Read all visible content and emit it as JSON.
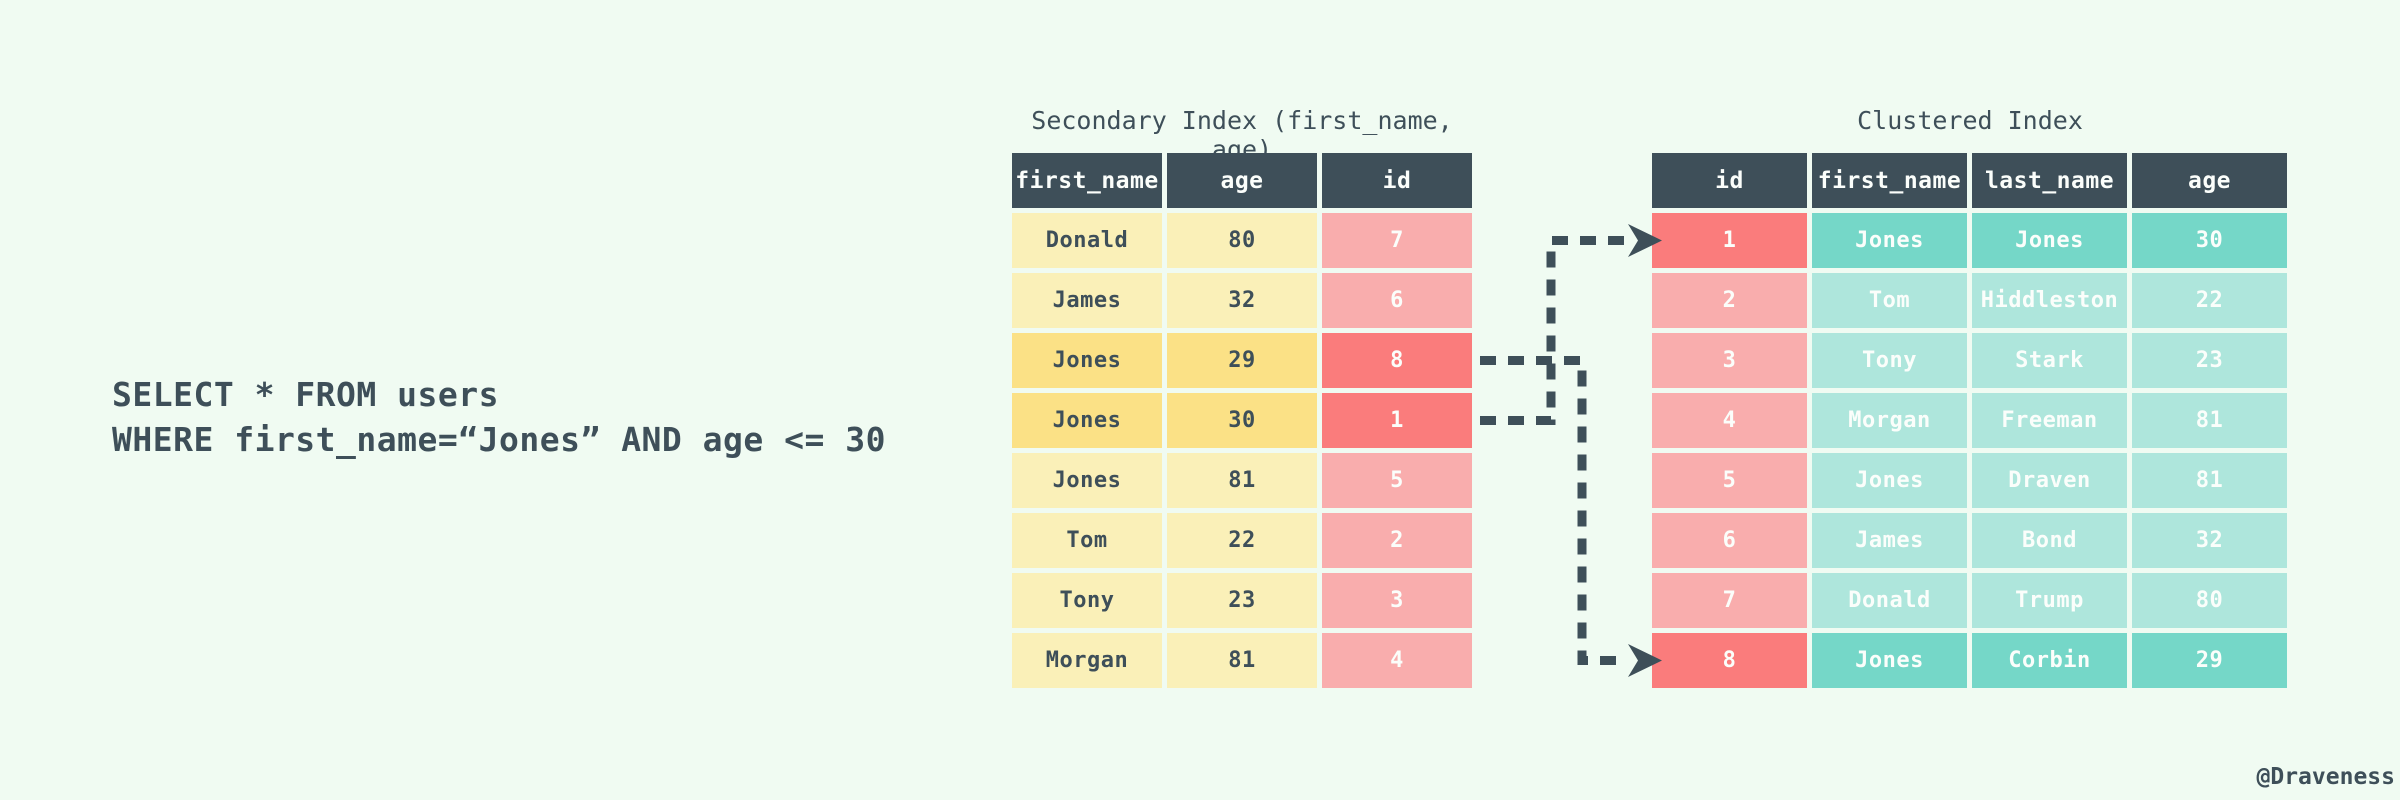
{
  "query": {
    "line1": "SELECT * FROM users",
    "line2": "WHERE first_name=“Jones” AND age <= 30"
  },
  "secondary_index": {
    "title": "Secondary Index (first_name, age)",
    "columns": [
      "first_name",
      "age",
      "id"
    ],
    "rows": [
      {
        "first_name": "Donald",
        "age": "80",
        "id": "7",
        "highlight": false
      },
      {
        "first_name": "James",
        "age": "32",
        "id": "6",
        "highlight": false
      },
      {
        "first_name": "Jones",
        "age": "29",
        "id": "8",
        "highlight": true
      },
      {
        "first_name": "Jones",
        "age": "30",
        "id": "1",
        "highlight": true
      },
      {
        "first_name": "Jones",
        "age": "81",
        "id": "5",
        "highlight": false
      },
      {
        "first_name": "Tom",
        "age": "22",
        "id": "2",
        "highlight": false
      },
      {
        "first_name": "Tony",
        "age": "23",
        "id": "3",
        "highlight": false
      },
      {
        "first_name": "Morgan",
        "age": "81",
        "id": "4",
        "highlight": false
      }
    ]
  },
  "clustered_index": {
    "title": "Clustered Index",
    "columns": [
      "id",
      "first_name",
      "last_name",
      "age"
    ],
    "rows": [
      {
        "id": "1",
        "first_name": "Jones",
        "last_name": "Jones",
        "age": "30",
        "highlight": true
      },
      {
        "id": "2",
        "first_name": "Tom",
        "last_name": "Hiddleston",
        "age": "22",
        "highlight": false
      },
      {
        "id": "3",
        "first_name": "Tony",
        "last_name": "Stark",
        "age": "23",
        "highlight": false
      },
      {
        "id": "4",
        "first_name": "Morgan",
        "last_name": "Freeman",
        "age": "81",
        "highlight": false
      },
      {
        "id": "5",
        "first_name": "Jones",
        "last_name": "Draven",
        "age": "81",
        "highlight": false
      },
      {
        "id": "6",
        "first_name": "James",
        "last_name": "Bond",
        "age": "32",
        "highlight": false
      },
      {
        "id": "7",
        "first_name": "Donald",
        "last_name": "Trump",
        "age": "80",
        "highlight": false
      },
      {
        "id": "8",
        "first_name": "Jones",
        "last_name": "Corbin",
        "age": "29",
        "highlight": true
      }
    ]
  },
  "arrow_links": [
    {
      "from_secondary_id": "1",
      "to_clustered_id": "1"
    },
    {
      "from_secondary_id": "8",
      "to_clustered_id": "8"
    }
  ],
  "footer": {
    "credit": "@Draveness"
  },
  "colors": {
    "background": "#f0fbf2",
    "slate": "#3e4f59",
    "yellow_light": "#faf0b8",
    "yellow_hl": "#fbe186",
    "pink": "#f9adad",
    "red": "#fa7c7c",
    "teal_light": "#aee6dc",
    "teal_hl": "#75d7c8",
    "white_text": "#fbfefb"
  }
}
